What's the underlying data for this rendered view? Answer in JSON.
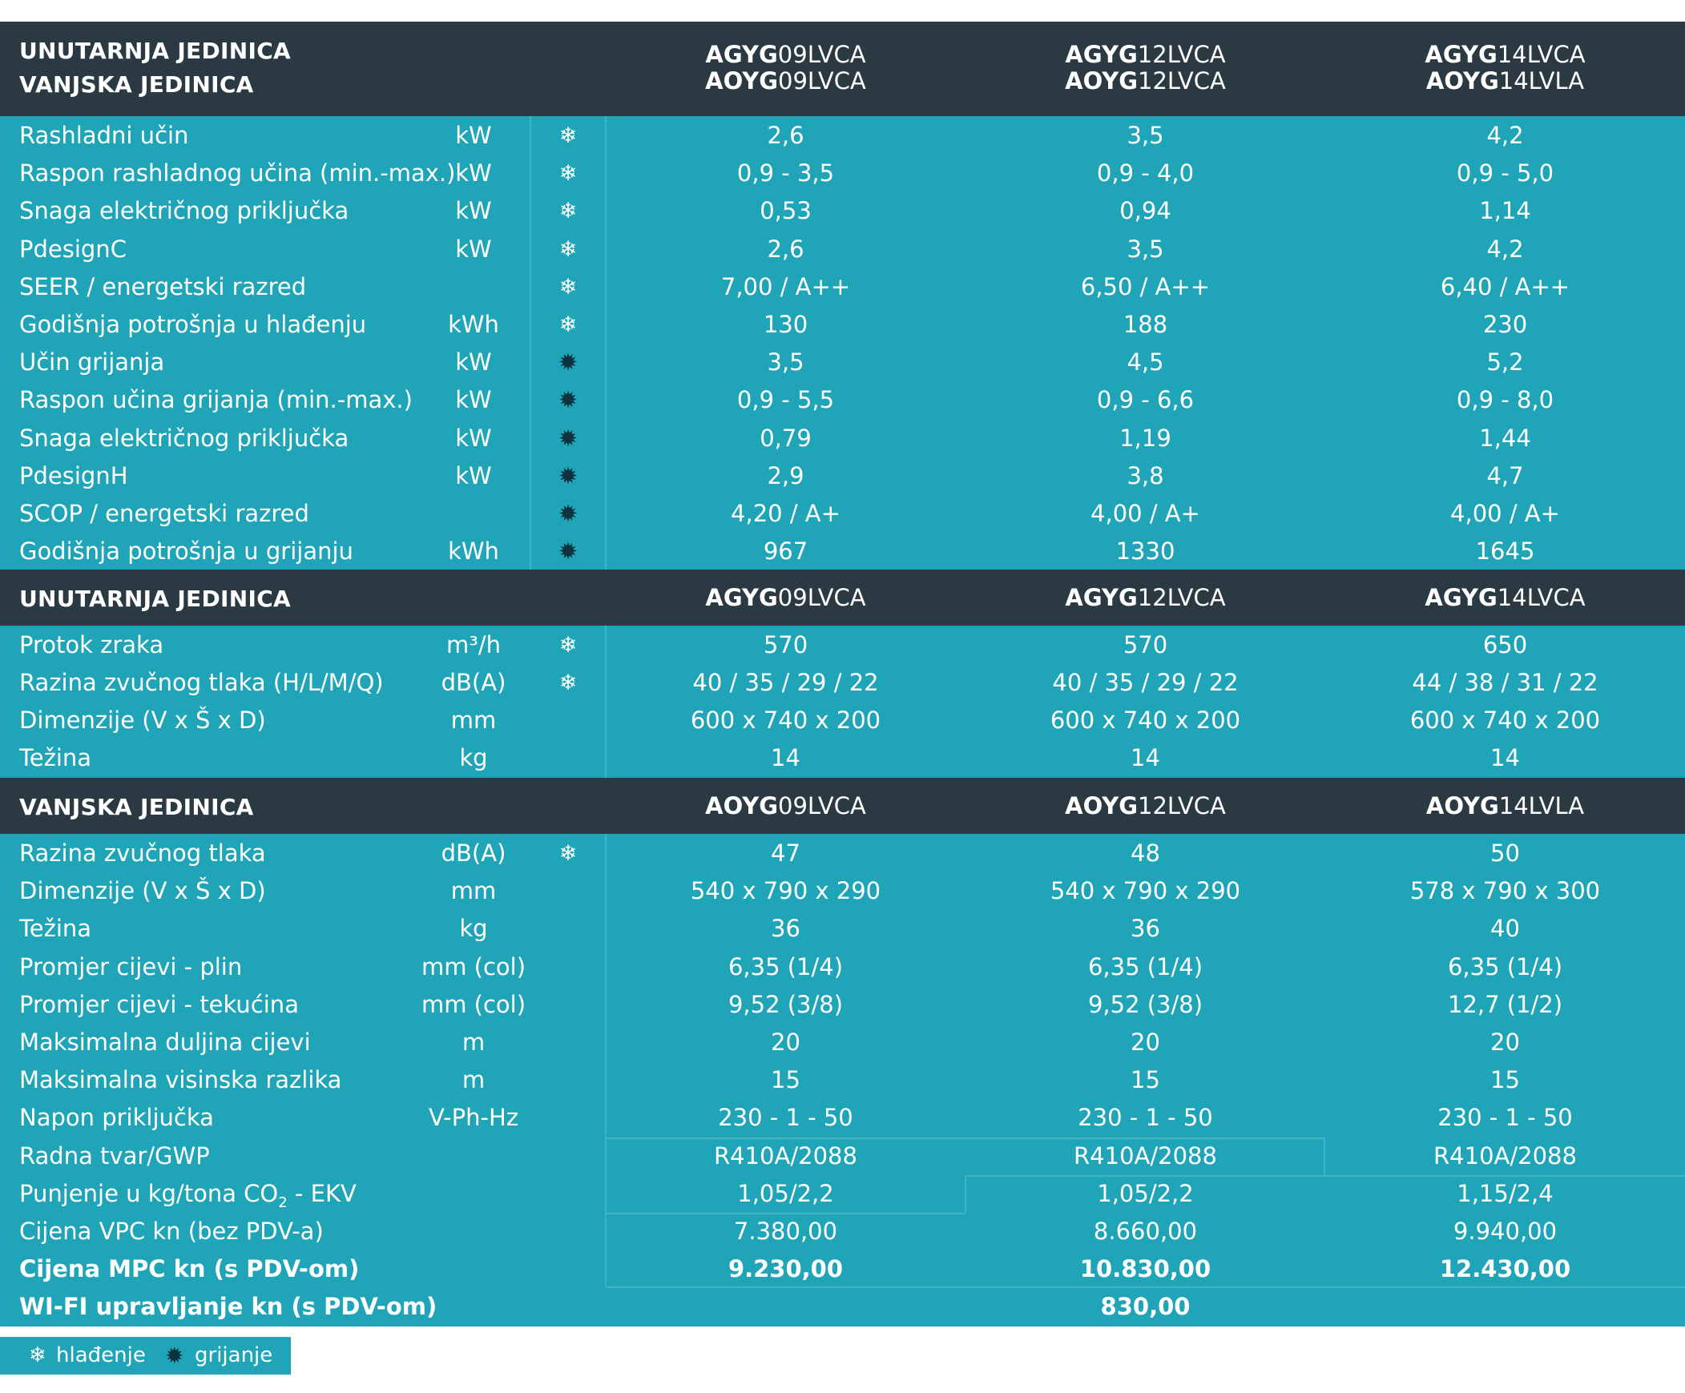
{
  "header": {
    "label_indoor": "UNUTARNJA JEDINICA",
    "label_outdoor": "VANJSKA JEDINICA",
    "models": [
      {
        "indoor_prefix": "AGYG",
        "indoor_rest": "09LVCA",
        "outdoor_prefix": "AOYG",
        "outdoor_rest": "09LVCA"
      },
      {
        "indoor_prefix": "AGYG",
        "indoor_rest": "12LVCA",
        "outdoor_prefix": "AOYG",
        "outdoor_rest": "12LVCA"
      },
      {
        "indoor_prefix": "AGYG",
        "indoor_rest": "14LVCA",
        "outdoor_prefix": "AOYG",
        "outdoor_rest": "14LVLA"
      }
    ]
  },
  "section1": {
    "rows": [
      {
        "label": "Rashladni učin",
        "unit": "kW",
        "icon": "❄",
        "v": [
          "2,6",
          "3,5",
          "4,2"
        ]
      },
      {
        "label": "Raspon rashladnog učina (min.-max.)",
        "unit": "kW",
        "icon": "❄",
        "v": [
          "0,9 - 3,5",
          "0,9 - 4,0",
          "0,9 - 5,0"
        ]
      },
      {
        "label": "Snaga električnog priključka",
        "unit": "kW",
        "icon": "❄",
        "v": [
          "0,53",
          "0,94",
          "1,14"
        ]
      },
      {
        "label": "PdesignC",
        "unit": "kW",
        "icon": "❄",
        "v": [
          "2,6",
          "3,5",
          "4,2"
        ]
      },
      {
        "label": "SEER / energetski razred",
        "unit": "",
        "icon": "❄",
        "v": [
          "7,00 / A++",
          "6,50 / A++",
          "6,40 / A++"
        ]
      },
      {
        "label": "Godišnja potrošnja u hlađenju",
        "unit": "kWh",
        "icon": "❄",
        "v": [
          "130",
          "188",
          "230"
        ]
      },
      {
        "label": "Učin grijanja",
        "unit": "kW",
        "icon": "✹",
        "v": [
          "3,5",
          "4,5",
          "5,2"
        ]
      },
      {
        "label": "Raspon učina grijanja (min.-max.)",
        "unit": "kW",
        "icon": "✹",
        "v": [
          "0,9 - 5,5",
          "0,9 - 6,6",
          "0,9 - 8,0"
        ]
      },
      {
        "label": "Snaga električnog priključka",
        "unit": "kW",
        "icon": "✹",
        "v": [
          "0,79",
          "1,19",
          "1,44"
        ]
      },
      {
        "label": "PdesignH",
        "unit": "kW",
        "icon": "✹",
        "v": [
          "2,9",
          "3,8",
          "4,7"
        ]
      },
      {
        "label": "SCOP / energetski razred",
        "unit": "",
        "icon": "✹",
        "v": [
          "4,20 / A+",
          "4,00 / A+",
          "4,00 / A+"
        ]
      },
      {
        "label": "Godišnja potrošnja u grijanju",
        "unit": "kWh",
        "icon": "✹",
        "v": [
          "967",
          "1330",
          "1645"
        ]
      }
    ]
  },
  "section2": {
    "title": "UNUTARNJA JEDINICA",
    "models": [
      {
        "prefix": "AGYG",
        "rest": "09LVCA"
      },
      {
        "prefix": "AGYG",
        "rest": "12LVCA"
      },
      {
        "prefix": "AGYG",
        "rest": "14LVCA"
      }
    ],
    "rows": [
      {
        "label": "Protok zraka",
        "unit": "m³/h",
        "icon": "❄",
        "v": [
          "570",
          "570",
          "650"
        ]
      },
      {
        "label": "Razina zvučnog tlaka (H/L/M/Q)",
        "unit": "dB(A)",
        "icon": "❄",
        "v": [
          "40 / 35 / 29 / 22",
          "40 / 35 / 29 / 22",
          "44 / 38 / 31 / 22"
        ]
      },
      {
        "label": "Dimenzije (V x Š x D)",
        "unit": "mm",
        "icon": "",
        "v": [
          "600 x 740 x 200",
          "600 x 740 x 200",
          "600 x 740 x 200"
        ]
      },
      {
        "label": "Težina",
        "unit": "kg",
        "icon": "",
        "v": [
          "14",
          "14",
          "14"
        ]
      }
    ]
  },
  "section3": {
    "title": "VANJSKA JEDINICA",
    "models": [
      {
        "prefix": "AOYG",
        "rest": "09LVCA"
      },
      {
        "prefix": "AOYG",
        "rest": "12LVCA"
      },
      {
        "prefix": "AOYG",
        "rest": "14LVLA"
      }
    ],
    "rows": [
      {
        "label": "Razina zvučnog tlaka",
        "unit": "dB(A)",
        "icon": "❄",
        "v": [
          "47",
          "48",
          "50"
        ]
      },
      {
        "label": "Dimenzije (V x Š x D)",
        "unit": "mm",
        "icon": "",
        "v": [
          "540 x 790 x 290",
          "540 x 790 x 290",
          "578 x 790 x 300"
        ]
      },
      {
        "label": "Težina",
        "unit": "kg",
        "icon": "",
        "v": [
          "36",
          "36",
          "40"
        ]
      },
      {
        "label": "Promjer cijevi  - plin",
        "unit": "mm (col)",
        "icon": "",
        "v": [
          "6,35 (1/4)",
          "6,35 (1/4)",
          "6,35 (1/4)"
        ]
      },
      {
        "label": "Promjer cijevi  - tekućina",
        "unit": "mm (col)",
        "icon": "",
        "v": [
          "9,52 (3/8)",
          "9,52 (3/8)",
          "12,7 (1/2)"
        ]
      },
      {
        "label": "Maksimalna duljina cijevi",
        "unit": "m",
        "icon": "",
        "v": [
          "20",
          "20",
          "20"
        ]
      },
      {
        "label": "Maksimalna visinska razlika",
        "unit": "m",
        "icon": "",
        "v": [
          "15",
          "15",
          "15"
        ]
      },
      {
        "label": "Napon priključka",
        "unit": "V-Ph-Hz",
        "icon": "",
        "v": [
          "230 - 1 - 50",
          "230 - 1 - 50",
          "230 - 1 - 50"
        ]
      },
      {
        "label": "Radna tvar/GWP",
        "unit": "",
        "icon": "",
        "v": [
          "R410A/2088",
          "R410A/2088",
          "R410A/2088"
        ]
      },
      {
        "label_pre": "Punjenje u kg/tona CO",
        "label_sub": "2",
        "label_post": " - EKV",
        "unit": "",
        "icon": "",
        "v": [
          "1,05/2,2",
          "1,05/2,2",
          "1,15/2,4"
        ]
      },
      {
        "label": "Cijena VPC kn (bez PDV-a)",
        "unit": "",
        "icon": "",
        "v": [
          "7.380,00",
          "8.660,00",
          "9.940,00"
        ]
      },
      {
        "label": "Cijena MPC kn (s PDV-om)",
        "unit": "",
        "icon": "",
        "bold": true,
        "v": [
          "9.230,00",
          "10.830,00",
          "12.430,00"
        ]
      },
      {
        "label": "WI-FI  upravljanje kn (s PDV-om)",
        "unit": "",
        "icon": "",
        "bold": true,
        "v": [
          "",
          "830,00",
          ""
        ]
      }
    ]
  },
  "legend": {
    "cool_icon": "❄",
    "cool_label": "hlađenje",
    "heat_icon": "✹",
    "heat_label": "grijanje"
  },
  "colors": {
    "header_bg": "#2b3a42",
    "body_bg": "#20a5b8",
    "text": "#ffffff"
  }
}
